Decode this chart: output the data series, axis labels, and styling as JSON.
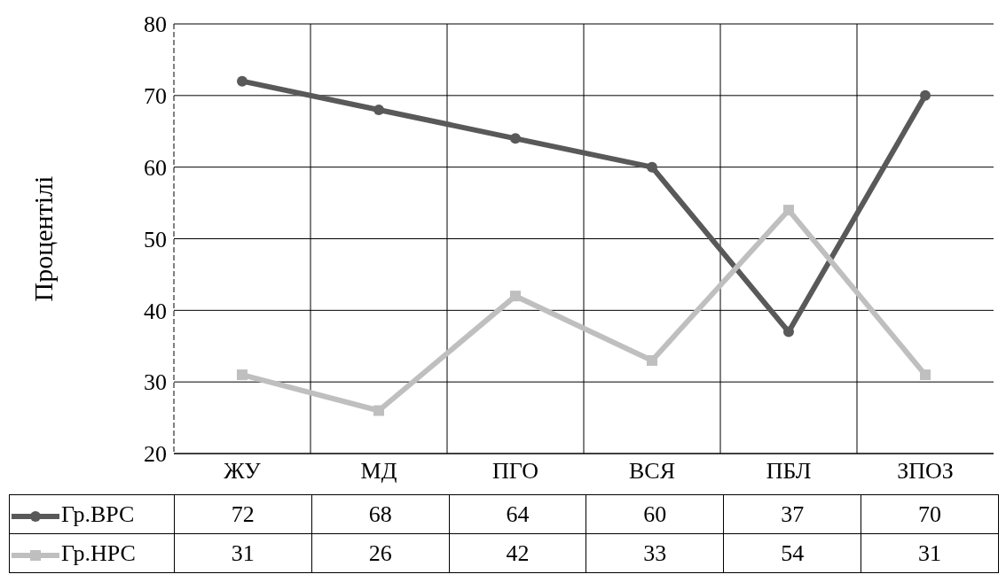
{
  "chart_data": {
    "type": "line",
    "ylabel": "Процентілі",
    "categories": [
      "ЖУ",
      "МД",
      "ПГО",
      "ВСЯ",
      "ПБЛ",
      "ЗПОЗ"
    ],
    "series": [
      {
        "name": "Гр.ВРС",
        "color": "#595959",
        "marker": "circle",
        "values": [
          72,
          68,
          64,
          60,
          37,
          70
        ]
      },
      {
        "name": "Гр.НРС",
        "color": "#bfbfbf",
        "marker": "square",
        "values": [
          31,
          26,
          42,
          33,
          54,
          31
        ]
      }
    ],
    "ylim": [
      20,
      80
    ],
    "yticks": [
      20,
      30,
      40,
      50,
      60,
      70,
      80
    ],
    "grid": true,
    "legend": "bottom",
    "data_labels": true,
    "line_style": "solid"
  }
}
